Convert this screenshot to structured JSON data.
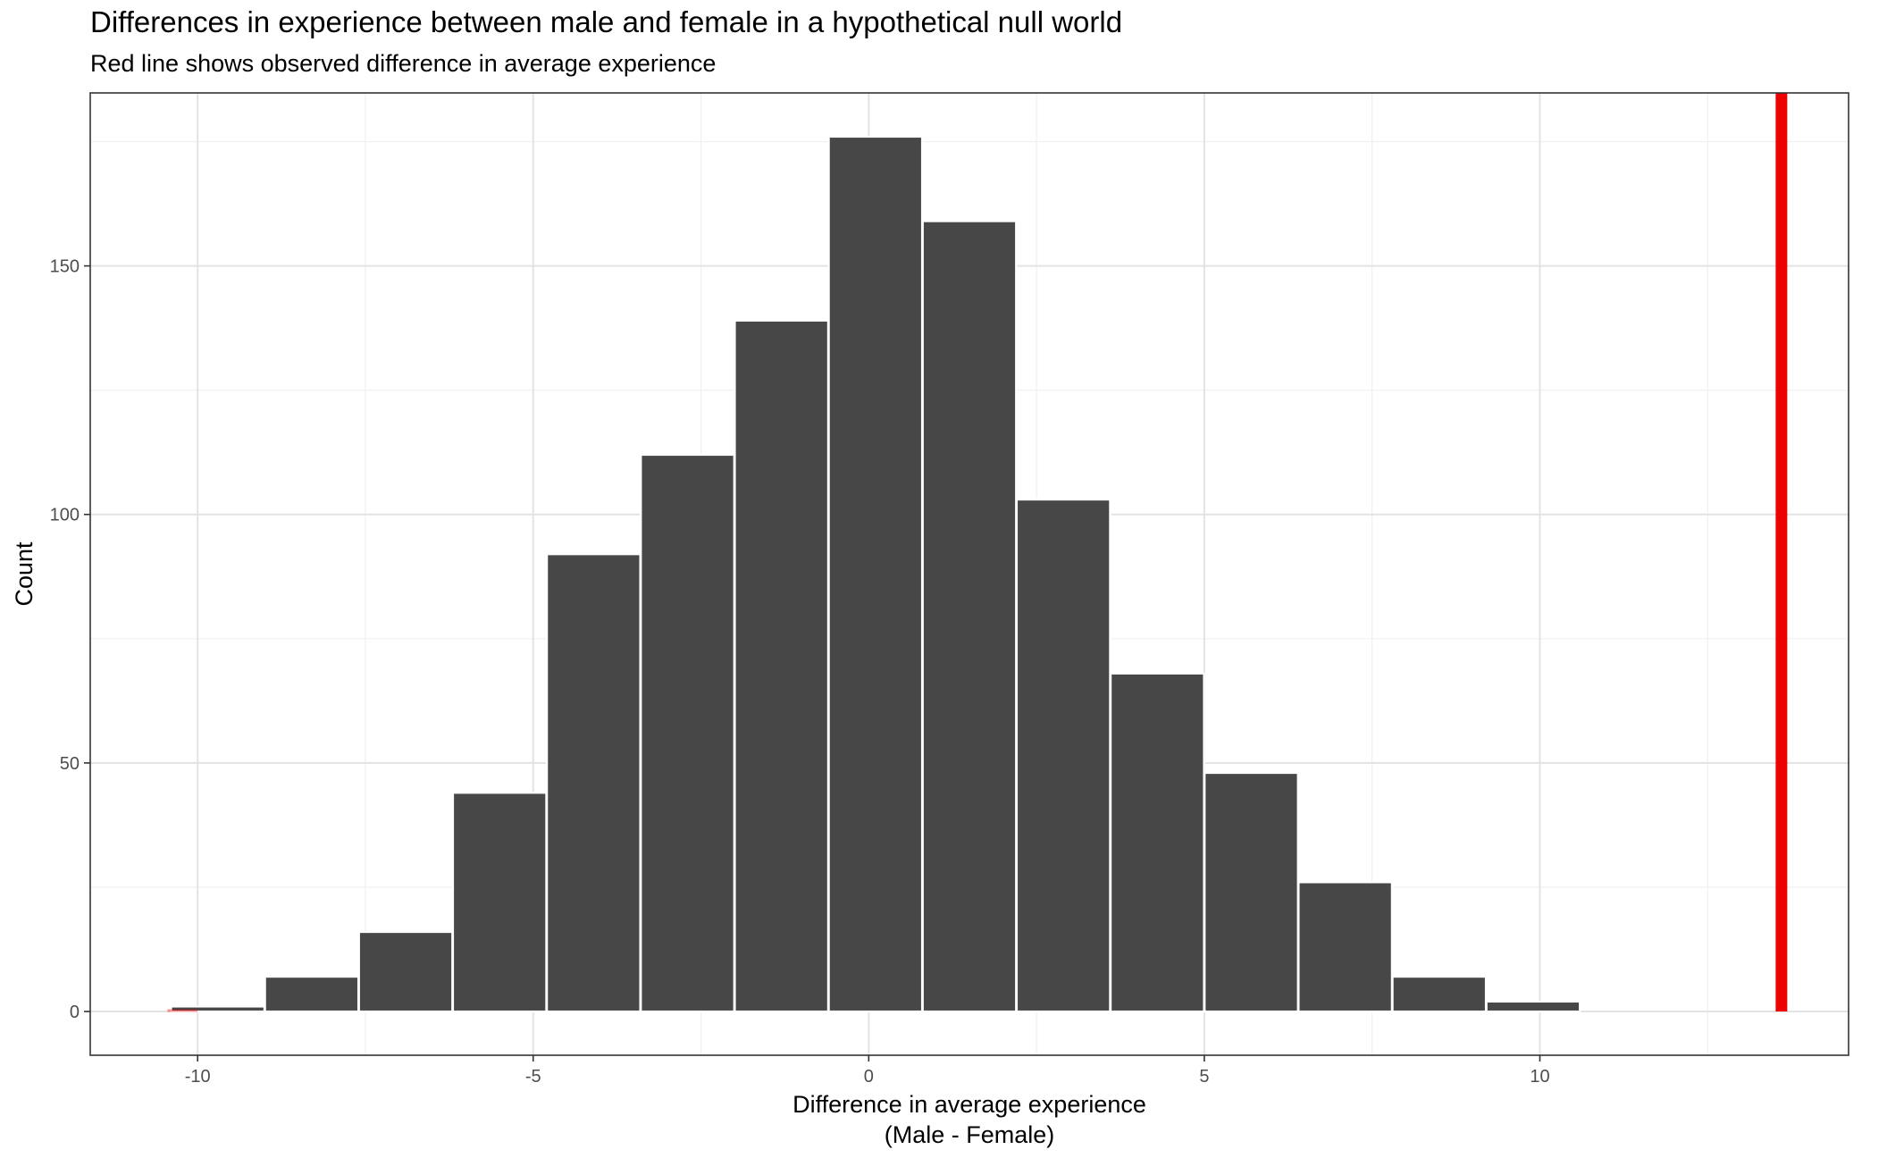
{
  "chart_data": {
    "type": "bar",
    "title": "Differences in experience between male and female in a hypothetical null world",
    "subtitle": "Red line shows observed difference in average experience",
    "xlabel_lines": [
      "Difference in average experience",
      "(Male - Female)"
    ],
    "ylabel": "Count",
    "bin_width": 1.39,
    "bins": [
      {
        "x": -9.7,
        "count": 1
      },
      {
        "x": -8.3,
        "count": 7
      },
      {
        "x": -6.9,
        "count": 16
      },
      {
        "x": -5.5,
        "count": 44
      },
      {
        "x": -4.1,
        "count": 92
      },
      {
        "x": -2.7,
        "count": 112
      },
      {
        "x": -1.3,
        "count": 139
      },
      {
        "x": 0.1,
        "count": 176
      },
      {
        "x": 1.5,
        "count": 159
      },
      {
        "x": 2.9,
        "count": 103
      },
      {
        "x": 4.3,
        "count": 68
      },
      {
        "x": 5.7,
        "count": 48
      },
      {
        "x": 7.1,
        "count": 26
      },
      {
        "x": 8.5,
        "count": 7
      },
      {
        "x": 9.9,
        "count": 2
      }
    ],
    "observed_difference": 13.6,
    "x_ticks": [
      -10,
      -5,
      0,
      5,
      10
    ],
    "x_tick_labels": [
      "-10",
      "-5",
      "0",
      "5",
      "10"
    ],
    "y_ticks": [
      0,
      50,
      100,
      150
    ],
    "y_tick_labels": [
      "0",
      "50",
      "100",
      "150"
    ],
    "xlim": [
      -11.6,
      14.6
    ],
    "ylim": [
      -8.8,
      184.8
    ],
    "grid": true,
    "legend": "none",
    "colors": {
      "bar_fill": "#474747",
      "bar_outline": "#ffffff",
      "observed_line": "#ee0000",
      "grid_major": "#e3e3e3",
      "grid_minor": "#f0f0f0",
      "panel_border": "#333333"
    }
  }
}
